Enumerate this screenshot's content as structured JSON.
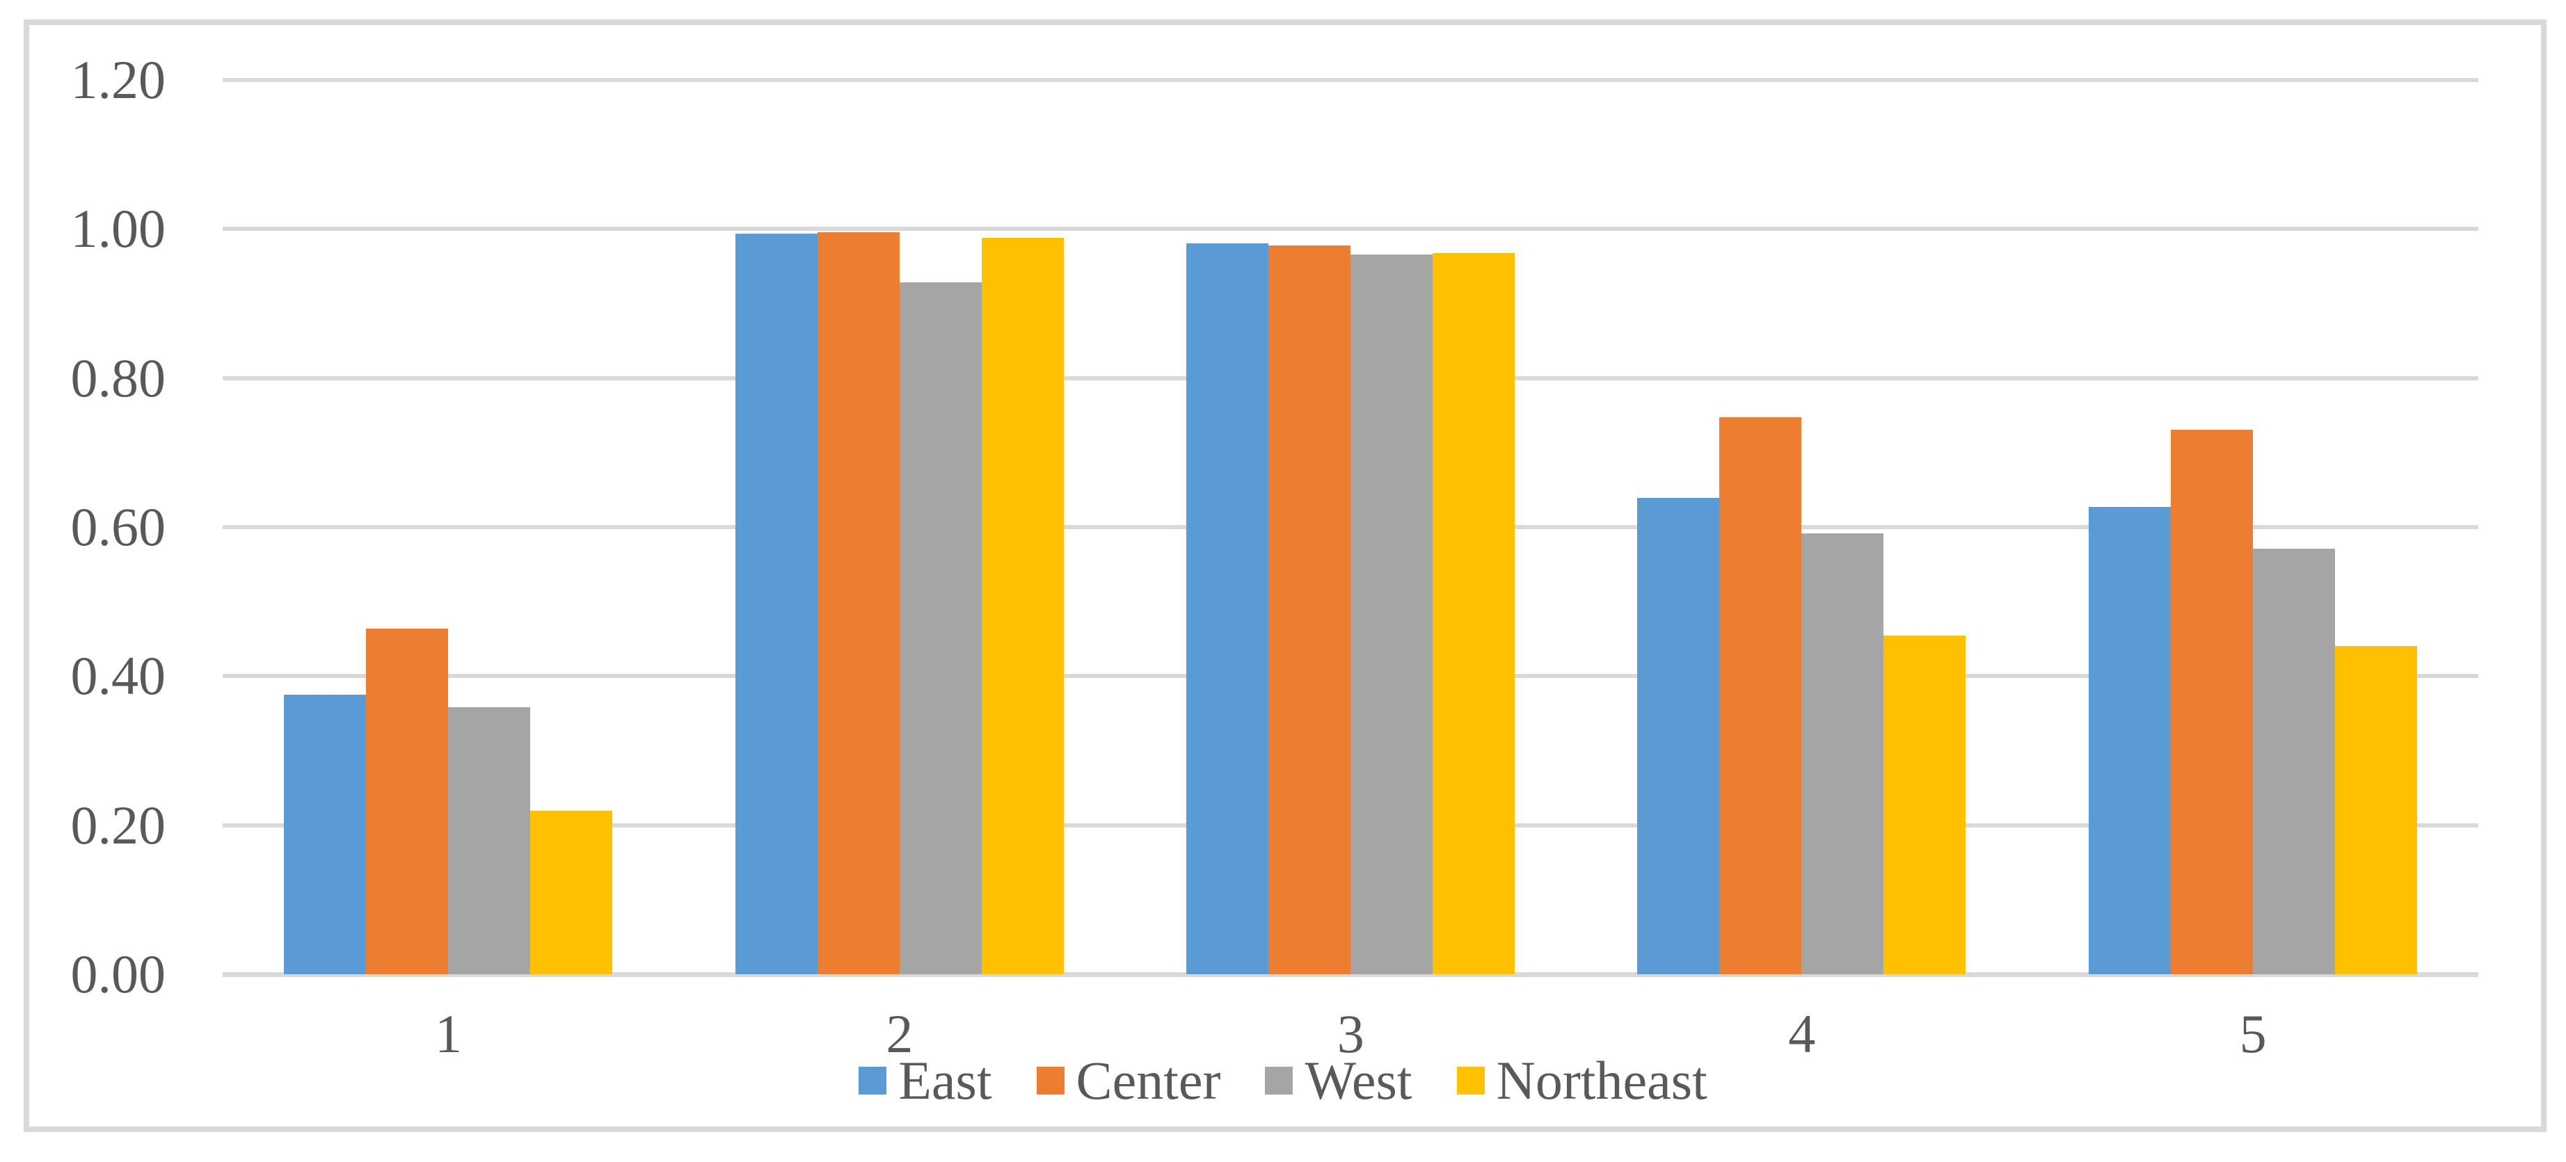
{
  "chart_data": {
    "type": "bar",
    "title": "",
    "xlabel": "",
    "ylabel": "",
    "categories": [
      "1",
      "2",
      "3",
      "4",
      "5"
    ],
    "series": [
      {
        "name": "East",
        "color": "#5B9BD5",
        "values": [
          0.375,
          0.994,
          0.981,
          0.639,
          0.627
        ]
      },
      {
        "name": "Center",
        "color": "#ED7D31",
        "values": [
          0.464,
          0.996,
          0.978,
          0.747,
          0.731
        ]
      },
      {
        "name": "West",
        "color": "#A5A5A5",
        "values": [
          0.358,
          0.928,
          0.966,
          0.592,
          0.571
        ]
      },
      {
        "name": "Northeast",
        "color": "#FFC000",
        "values": [
          0.219,
          0.988,
          0.968,
          0.454,
          0.44
        ]
      }
    ],
    "y_ticks": [
      "0.00",
      "0.20",
      "0.40",
      "0.60",
      "0.80",
      "1.00",
      "1.20"
    ],
    "y_tick_values": [
      0.0,
      0.2,
      0.4,
      0.6,
      0.8,
      1.0,
      1.2
    ],
    "ylim": [
      0.0,
      1.2
    ],
    "grid": true,
    "legend_position": "bottom"
  },
  "colors": {
    "gridline": "#D9D9D9",
    "chart_border": "#D9D9D9",
    "axis_text": "#595959",
    "background": "#FFFFFF"
  }
}
